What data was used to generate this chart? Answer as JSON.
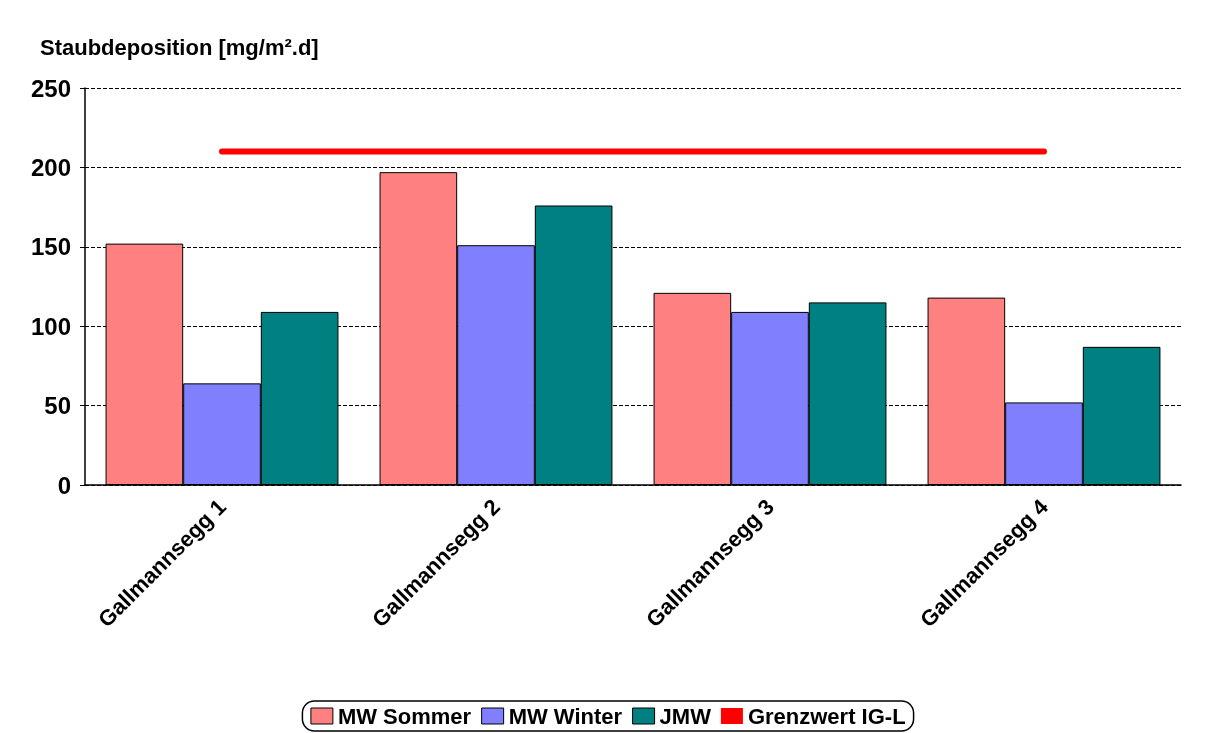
{
  "chart_data": {
    "type": "bar",
    "ylabel": "Staubdeposition [mg/m².d]",
    "categories": [
      "Gallmannsegg 1",
      "Gallmannsegg 2",
      "Gallmannsegg 3",
      "Gallmannsegg 4"
    ],
    "series": [
      {
        "name": "MW Sommer",
        "color": "#ff8080",
        "values": [
          152,
          197,
          121,
          118
        ]
      },
      {
        "name": "MW Winter",
        "color": "#8080ff",
        "values": [
          64,
          151,
          109,
          52
        ]
      },
      {
        "name": "JMW",
        "color": "#008080",
        "values": [
          109,
          176,
          115,
          87
        ]
      },
      {
        "name": "Grenzwert IG-L",
        "color": "#ff0000",
        "type": "line",
        "values": [
          210,
          210,
          210,
          210
        ]
      }
    ],
    "ylim": [
      0,
      250
    ],
    "yticks": [
      0,
      50,
      100,
      150,
      200,
      250
    ],
    "grid": "y",
    "legend": "bottom",
    "marker": "none",
    "line_style": "solid"
  }
}
